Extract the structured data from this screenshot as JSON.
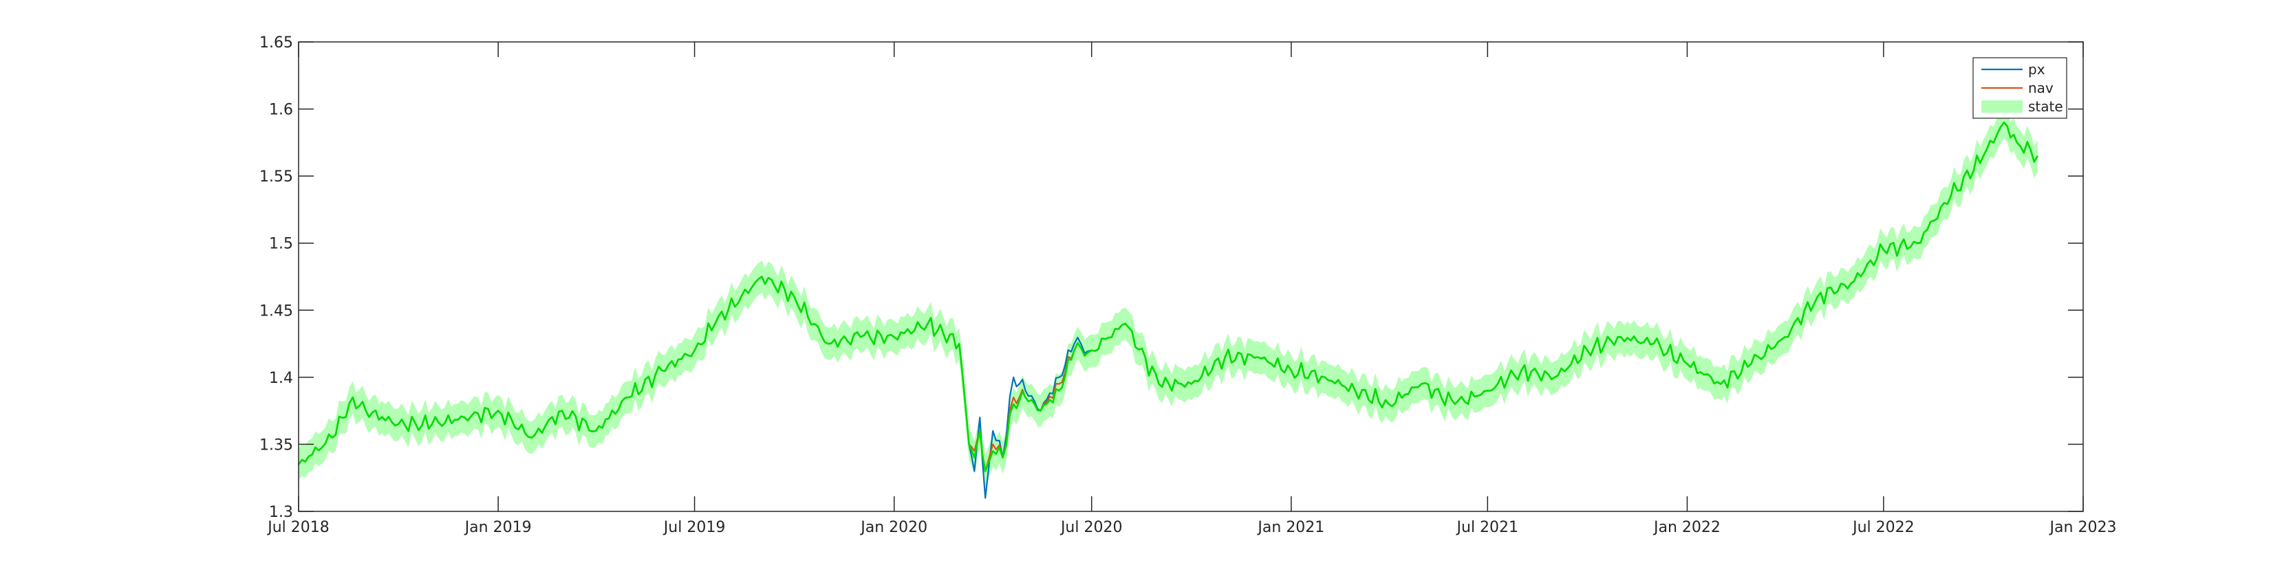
{
  "chart_data": {
    "type": "line",
    "title": "",
    "xlabel": "",
    "ylabel": "",
    "x_axis": {
      "type": "date",
      "range": [
        "2018-07-01",
        "2023-01-01"
      ],
      "ticks": [
        {
          "date": "2018-07-01",
          "label": "Jul 2018"
        },
        {
          "date": "2019-01-01",
          "label": "Jan 2019"
        },
        {
          "date": "2019-07-01",
          "label": "Jul 2019"
        },
        {
          "date": "2020-01-01",
          "label": "Jan 2020"
        },
        {
          "date": "2020-07-01",
          "label": "Jul 2020"
        },
        {
          "date": "2021-01-01",
          "label": "Jan 2021"
        },
        {
          "date": "2021-07-01",
          "label": "Jul 2021"
        },
        {
          "date": "2022-01-01",
          "label": "Jan 2022"
        },
        {
          "date": "2022-07-01",
          "label": "Jul 2022"
        },
        {
          "date": "2023-01-01",
          "label": "Jan 2023"
        }
      ]
    },
    "y_axis": {
      "range": [
        1.3,
        1.65
      ],
      "ticks": [
        {
          "value": 1.3,
          "label": "1.3"
        },
        {
          "value": 1.35,
          "label": "1.35"
        },
        {
          "value": 1.4,
          "label": "1.4"
        },
        {
          "value": 1.45,
          "label": "1.45"
        },
        {
          "value": 1.5,
          "label": "1.5"
        },
        {
          "value": 1.55,
          "label": "1.55"
        },
        {
          "value": 1.6,
          "label": "1.6"
        },
        {
          "value": 1.65,
          "label": "1.65"
        }
      ]
    },
    "grid": false,
    "legend": {
      "placement": "top-right",
      "entries": [
        {
          "name": "px",
          "kind": "line",
          "color": "#0072BD"
        },
        {
          "name": "nav",
          "kind": "line",
          "color": "#D95319"
        },
        {
          "name": "state",
          "kind": "band",
          "color": "#B3FFB3"
        }
      ]
    },
    "series": [
      {
        "name": "px",
        "color": "#0072BD",
        "x": [
          "2018-07-01",
          "2018-08-01",
          "2018-08-20",
          "2018-09-01",
          "2018-10-01",
          "2018-11-01",
          "2018-12-01",
          "2019-01-01",
          "2019-02-01",
          "2019-03-01",
          "2019-04-01",
          "2019-05-01",
          "2019-06-01",
          "2019-07-01",
          "2019-07-20",
          "2019-08-01",
          "2019-09-01",
          "2019-10-01",
          "2019-11-01",
          "2019-12-01",
          "2020-01-01",
          "2020-02-01",
          "2020-03-01",
          "2020-03-10",
          "2020-03-15",
          "2020-03-20",
          "2020-03-25",
          "2020-04-01",
          "2020-04-10",
          "2020-04-20",
          "2020-05-01",
          "2020-05-15",
          "2020-06-01",
          "2020-06-15",
          "2020-07-01",
          "2020-08-01",
          "2020-09-01",
          "2020-10-01",
          "2020-11-01",
          "2020-12-01",
          "2021-01-01",
          "2021-02-01",
          "2021-03-01",
          "2021-04-01",
          "2021-05-01",
          "2021-06-01",
          "2021-07-01",
          "2021-08-01",
          "2021-09-01",
          "2021-10-01",
          "2021-11-01",
          "2021-12-01",
          "2022-01-01",
          "2022-02-01",
          "2022-03-01",
          "2022-04-01",
          "2022-05-01",
          "2022-06-01",
          "2022-07-01",
          "2022-08-01",
          "2022-09-01",
          "2022-10-01",
          "2022-10-20",
          "2022-11-01",
          "2022-11-20"
        ],
        "values": [
          1.335,
          1.355,
          1.385,
          1.375,
          1.365,
          1.365,
          1.37,
          1.375,
          1.355,
          1.375,
          1.36,
          1.385,
          1.405,
          1.42,
          1.44,
          1.45,
          1.475,
          1.46,
          1.425,
          1.43,
          1.43,
          1.44,
          1.425,
          1.35,
          1.33,
          1.37,
          1.31,
          1.36,
          1.34,
          1.4,
          1.39,
          1.375,
          1.4,
          1.425,
          1.42,
          1.44,
          1.395,
          1.395,
          1.415,
          1.415,
          1.405,
          1.4,
          1.39,
          1.38,
          1.395,
          1.38,
          1.39,
          1.405,
          1.4,
          1.42,
          1.43,
          1.425,
          1.41,
          1.395,
          1.41,
          1.43,
          1.46,
          1.47,
          1.495,
          1.5,
          1.535,
          1.565,
          1.59,
          1.575,
          1.565
        ]
      },
      {
        "name": "nav",
        "color": "#D95319",
        "x": [
          "2018-07-01",
          "2018-08-01",
          "2018-08-20",
          "2018-09-01",
          "2018-10-01",
          "2018-11-01",
          "2018-12-01",
          "2019-01-01",
          "2019-02-01",
          "2019-03-01",
          "2019-04-01",
          "2019-05-01",
          "2019-06-01",
          "2019-07-01",
          "2019-07-20",
          "2019-08-01",
          "2019-09-01",
          "2019-10-01",
          "2019-11-01",
          "2019-12-01",
          "2020-01-01",
          "2020-02-01",
          "2020-03-01",
          "2020-03-10",
          "2020-03-15",
          "2020-03-20",
          "2020-03-25",
          "2020-04-01",
          "2020-04-10",
          "2020-04-20",
          "2020-05-01",
          "2020-05-15",
          "2020-06-01",
          "2020-06-15",
          "2020-07-01",
          "2020-08-01",
          "2020-09-01",
          "2020-10-01",
          "2020-11-01",
          "2020-12-01",
          "2021-01-01",
          "2021-02-01",
          "2021-03-01",
          "2021-04-01",
          "2021-05-01",
          "2021-06-01",
          "2021-07-01",
          "2021-08-01",
          "2021-09-01",
          "2021-10-01",
          "2021-11-01",
          "2021-12-01",
          "2022-01-01",
          "2022-02-01",
          "2022-03-01",
          "2022-04-01",
          "2022-05-01",
          "2022-06-01",
          "2022-07-01",
          "2022-08-01",
          "2022-09-01",
          "2022-10-01",
          "2022-10-20",
          "2022-11-01",
          "2022-11-20"
        ],
        "values": [
          1.335,
          1.355,
          1.385,
          1.375,
          1.365,
          1.365,
          1.37,
          1.375,
          1.355,
          1.375,
          1.36,
          1.385,
          1.405,
          1.42,
          1.44,
          1.45,
          1.475,
          1.46,
          1.425,
          1.43,
          1.43,
          1.44,
          1.425,
          1.35,
          1.345,
          1.36,
          1.33,
          1.35,
          1.34,
          1.385,
          1.385,
          1.375,
          1.395,
          1.42,
          1.42,
          1.44,
          1.395,
          1.395,
          1.415,
          1.415,
          1.405,
          1.4,
          1.39,
          1.38,
          1.395,
          1.38,
          1.39,
          1.405,
          1.4,
          1.42,
          1.43,
          1.425,
          1.41,
          1.395,
          1.41,
          1.43,
          1.46,
          1.47,
          1.495,
          1.5,
          1.535,
          1.565,
          1.59,
          1.575,
          1.565
        ]
      },
      {
        "name": "state",
        "color": "#00DD00",
        "band_halfwidth": 0.012,
        "x": [
          "2018-07-01",
          "2018-08-01",
          "2018-08-20",
          "2018-09-01",
          "2018-10-01",
          "2018-11-01",
          "2018-12-01",
          "2019-01-01",
          "2019-02-01",
          "2019-03-01",
          "2019-04-01",
          "2019-05-01",
          "2019-06-01",
          "2019-07-01",
          "2019-07-20",
          "2019-08-01",
          "2019-09-01",
          "2019-10-01",
          "2019-11-01",
          "2019-12-01",
          "2020-01-01",
          "2020-02-01",
          "2020-03-01",
          "2020-03-10",
          "2020-03-15",
          "2020-03-20",
          "2020-03-25",
          "2020-04-01",
          "2020-04-10",
          "2020-04-20",
          "2020-05-01",
          "2020-05-15",
          "2020-06-01",
          "2020-06-15",
          "2020-07-01",
          "2020-08-01",
          "2020-09-01",
          "2020-10-01",
          "2020-11-01",
          "2020-12-01",
          "2021-01-01",
          "2021-02-01",
          "2021-03-01",
          "2021-04-01",
          "2021-05-01",
          "2021-06-01",
          "2021-07-01",
          "2021-08-01",
          "2021-09-01",
          "2021-10-01",
          "2021-11-01",
          "2021-12-01",
          "2022-01-01",
          "2022-02-01",
          "2022-03-01",
          "2022-04-01",
          "2022-05-01",
          "2022-06-01",
          "2022-07-01",
          "2022-08-01",
          "2022-09-01",
          "2022-10-01",
          "2022-10-20",
          "2022-11-01",
          "2022-11-20"
        ],
        "values": [
          1.335,
          1.355,
          1.385,
          1.375,
          1.365,
          1.365,
          1.37,
          1.375,
          1.355,
          1.375,
          1.36,
          1.385,
          1.405,
          1.42,
          1.44,
          1.45,
          1.475,
          1.46,
          1.425,
          1.43,
          1.43,
          1.44,
          1.425,
          1.35,
          1.34,
          1.36,
          1.33,
          1.345,
          1.34,
          1.38,
          1.385,
          1.375,
          1.39,
          1.42,
          1.42,
          1.44,
          1.395,
          1.395,
          1.415,
          1.415,
          1.405,
          1.4,
          1.39,
          1.38,
          1.395,
          1.38,
          1.39,
          1.405,
          1.4,
          1.42,
          1.43,
          1.425,
          1.41,
          1.395,
          1.41,
          1.43,
          1.46,
          1.47,
          1.495,
          1.5,
          1.535,
          1.565,
          1.59,
          1.575,
          1.565
        ]
      }
    ]
  }
}
